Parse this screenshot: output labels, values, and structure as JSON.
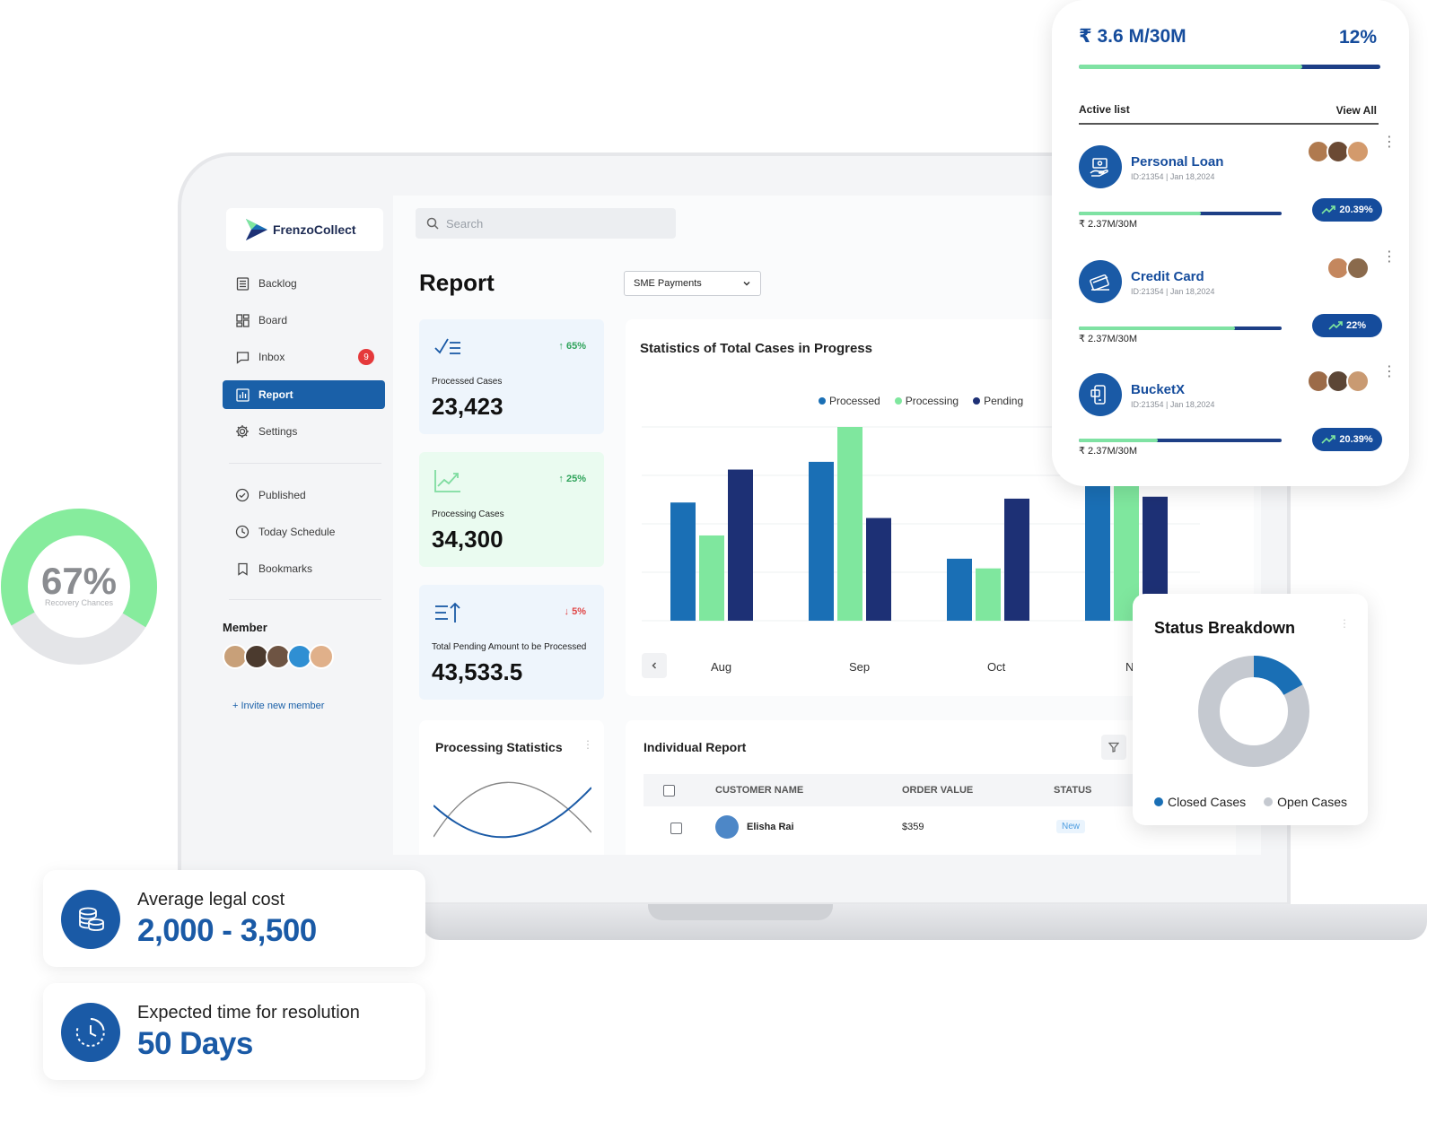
{
  "app": {
    "brand": "FrenzoCollect"
  },
  "search": {
    "placeholder": "Search"
  },
  "sidebar": {
    "items": [
      {
        "label": "Backlog",
        "icon": "backlog-icon"
      },
      {
        "label": "Board",
        "icon": "board-icon"
      },
      {
        "label": "Inbox",
        "icon": "inbox-icon",
        "badge": "9"
      },
      {
        "label": "Report",
        "icon": "report-icon",
        "active": true
      },
      {
        "label": "Settings",
        "icon": "gear-icon"
      },
      {
        "label": "Published",
        "icon": "check-circle-icon"
      },
      {
        "label": "Today Schedule",
        "icon": "clock-icon"
      },
      {
        "label": "Bookmarks",
        "icon": "bookmark-icon"
      }
    ],
    "member_title": "Member",
    "invite_label": "+ Invite new member"
  },
  "main": {
    "title": "Report",
    "dropdown": "SME Payments",
    "cards": [
      {
        "label": "Processed Cases",
        "value": "23,423",
        "delta": "↑ 65%",
        "delta_color": "#2ea35a",
        "bg": "#eef5fc"
      },
      {
        "label": "Processing Cases",
        "value": "34,300",
        "delta": "↑ 25%",
        "delta_color": "#2ea35a",
        "bg": "#eafbf0"
      },
      {
        "label": "Total Pending Amount to be Processed",
        "value": "43,533.5",
        "delta": "↓ 5%",
        "delta_color": "#e04545",
        "bg": "#eef5fc"
      }
    ],
    "processing_statistics_title": "Processing Statistics",
    "individual_report": {
      "title": "Individual Report",
      "columns": [
        "CUSTOMER NAME",
        "ORDER VALUE",
        "STATUS"
      ],
      "rows": [
        {
          "name": "Elisha Rai",
          "order_value": "$359",
          "status": "New"
        }
      ]
    }
  },
  "chart_data": {
    "type": "bar",
    "title": "Statistics of Total Cases in Progress",
    "categories": [
      "Aug",
      "Sep",
      "Oct",
      "Nov"
    ],
    "series": [
      {
        "name": "Processed",
        "color": "#1a6fb5",
        "values": [
          61,
          82,
          32,
          78
        ]
      },
      {
        "name": "Processing",
        "color": "#7fe79e",
        "values": [
          44,
          100,
          27,
          90
        ]
      },
      {
        "name": "Pending",
        "color": "#1d3075",
        "values": [
          78,
          53,
          63,
          64
        ]
      }
    ],
    "ylim": [
      0,
      100
    ]
  },
  "phone": {
    "amount": "₹ 3.6 M/30M",
    "percent": "12%",
    "progress": 0.74,
    "active_list": "Active list",
    "view_all": "View All",
    "loans": [
      {
        "name": "Personal Loan",
        "id": "ID:21354 | Jan 18,2024",
        "amount": "₹ 2.37M/30M",
        "badge": "20.39%",
        "progress": 0.6,
        "avatars": 3,
        "icon": "hand-coin-icon"
      },
      {
        "name": "Credit Card",
        "id": "ID:21354 | Jan 18,2024",
        "amount": "₹ 2.37M/30M",
        "badge": "22%",
        "progress": 0.77,
        "avatars": 2,
        "icon": "credit-card-icon"
      },
      {
        "name": "BucketX",
        "id": "ID:21354 | Jan 18,2024",
        "amount": "₹ 2.37M/30M",
        "badge": "20.39%",
        "progress": 0.39,
        "avatars": 3,
        "icon": "phone-app-icon"
      }
    ]
  },
  "status_breakdown": {
    "title": "Status Breakdown",
    "legend": [
      {
        "label": "Closed Cases",
        "color": "#1a6fb5"
      },
      {
        "label": "Open Cases",
        "color": "#c5c9d0"
      }
    ],
    "closed_fraction": 0.17
  },
  "gauge": {
    "value": "67%",
    "label": "Recovery Chances",
    "fraction": 0.67
  },
  "info_cards": [
    {
      "label": "Average legal cost",
      "value": "2,000 - 3,500",
      "icon": "coins-icon"
    },
    {
      "label": "Expected time for resolution",
      "value": "50 Days",
      "icon": "clock-icon"
    }
  ]
}
